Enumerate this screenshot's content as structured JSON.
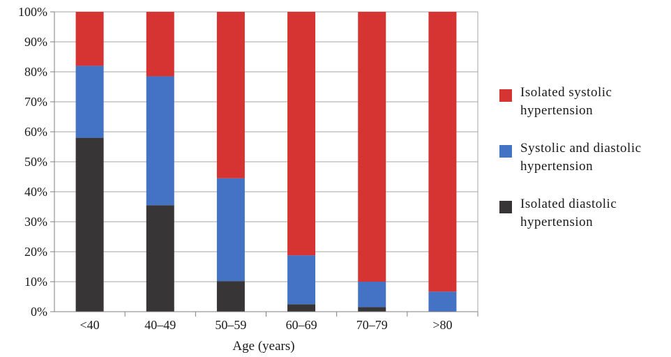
{
  "chart_data": {
    "type": "bar",
    "stacked": true,
    "normalized_percent": true,
    "categories": [
      "<40",
      "40–49",
      "50–59",
      "60–69",
      "70–79",
      ">80"
    ],
    "series": [
      {
        "name": "Isolated diastolic hypertension",
        "name_lines": [
          "Isolated diastolic",
          "hypertension"
        ],
        "color": "#383536",
        "values": [
          58,
          35.5,
          10.2,
          2.5,
          1.5,
          0
        ]
      },
      {
        "name": "Systolic and diastolic hypertension",
        "name_lines": [
          "Systolic and diastolic",
          "hypertension"
        ],
        "color": "#4472c4",
        "values": [
          24,
          43,
          34.3,
          16.3,
          8.5,
          6.7
        ]
      },
      {
        "name": "Isolated systolic hypertension",
        "name_lines": [
          "Isolated systolic",
          "hypertension"
        ],
        "color": "#d63333",
        "values": [
          18,
          21.5,
          55.5,
          81.2,
          90,
          93.3
        ]
      }
    ],
    "yticks": [
      "0%",
      "10%",
      "20%",
      "30%",
      "40%",
      "50%",
      "60%",
      "70%",
      "80%",
      "90%",
      "100%"
    ],
    "ylim": [
      0,
      100
    ],
    "xlabel": "Age (years)",
    "ylabel": "",
    "title": "",
    "grid": true,
    "legend_position": "right",
    "legend_order": [
      "Isolated systolic hypertension",
      "Systolic and diastolic hypertension",
      "Isolated diastolic hypertension"
    ]
  }
}
